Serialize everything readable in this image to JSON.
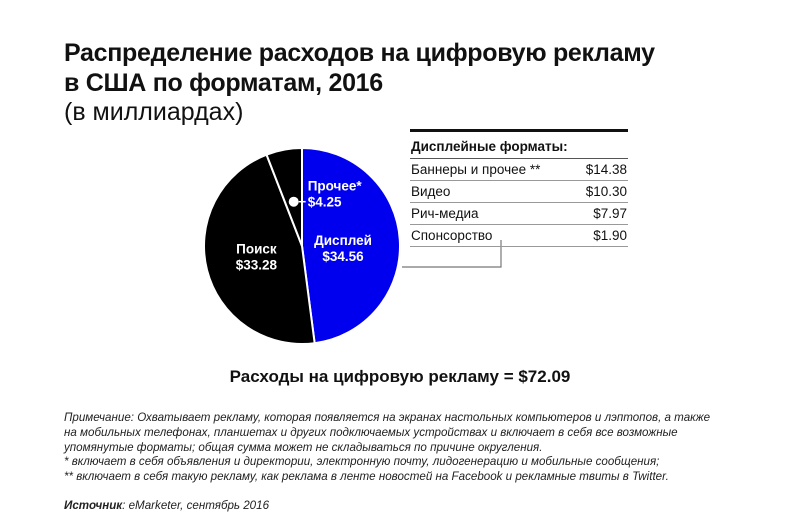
{
  "header": {
    "title_line1": "Распределение расходов на цифровую рекламу",
    "title_line2": "в США по форматам, 2016",
    "subtitle": "(в миллиардах)"
  },
  "colors": {
    "display": "#0000ee",
    "search": "#000000",
    "other": "#000000",
    "other_label": "#0000ee"
  },
  "chart_data": {
    "type": "pie",
    "slices": [
      {
        "label": "Дисплей",
        "value": 34.56,
        "value_label": "$34.56"
      },
      {
        "label": "Поиск",
        "value": 33.28,
        "value_label": "$33.28"
      },
      {
        "label": "Прочее*",
        "value": 4.25,
        "value_label": "$4.25"
      }
    ]
  },
  "table": {
    "header": "Дисплейные форматы:",
    "rows": [
      {
        "name": "Баннеры и прочее **",
        "value": "$14.38"
      },
      {
        "name": "Видео",
        "value": "$10.30"
      },
      {
        "name": "Рич-медиа",
        "value": "$7.97"
      },
      {
        "name": "Спонсорство",
        "value": "$1.90"
      }
    ]
  },
  "total": "Расходы на цифровую рекламу = $72.09",
  "notes": {
    "line1": "Примечание: Охватывает рекламу, которая появляется на экранах настольных компьютеров и лэптопов, а также",
    "line2": "на мобильных телефонах, планшетах и других подключаемых устройствах и включает в себя все возможные",
    "line3": "упомянутые форматы; общая сумма может не складываться по причине округления.",
    "line4": "* включает в себя объявления и директории, электронную почту, лидогенерацию и мобильные сообщения;",
    "line5": "** включает в себя такую рекламу, как реклама в ленте новостей на Facebook и рекламные твиты в Twitter."
  },
  "source": {
    "label": "Источник",
    "text": ": eMarketer, сентябрь 2016"
  }
}
